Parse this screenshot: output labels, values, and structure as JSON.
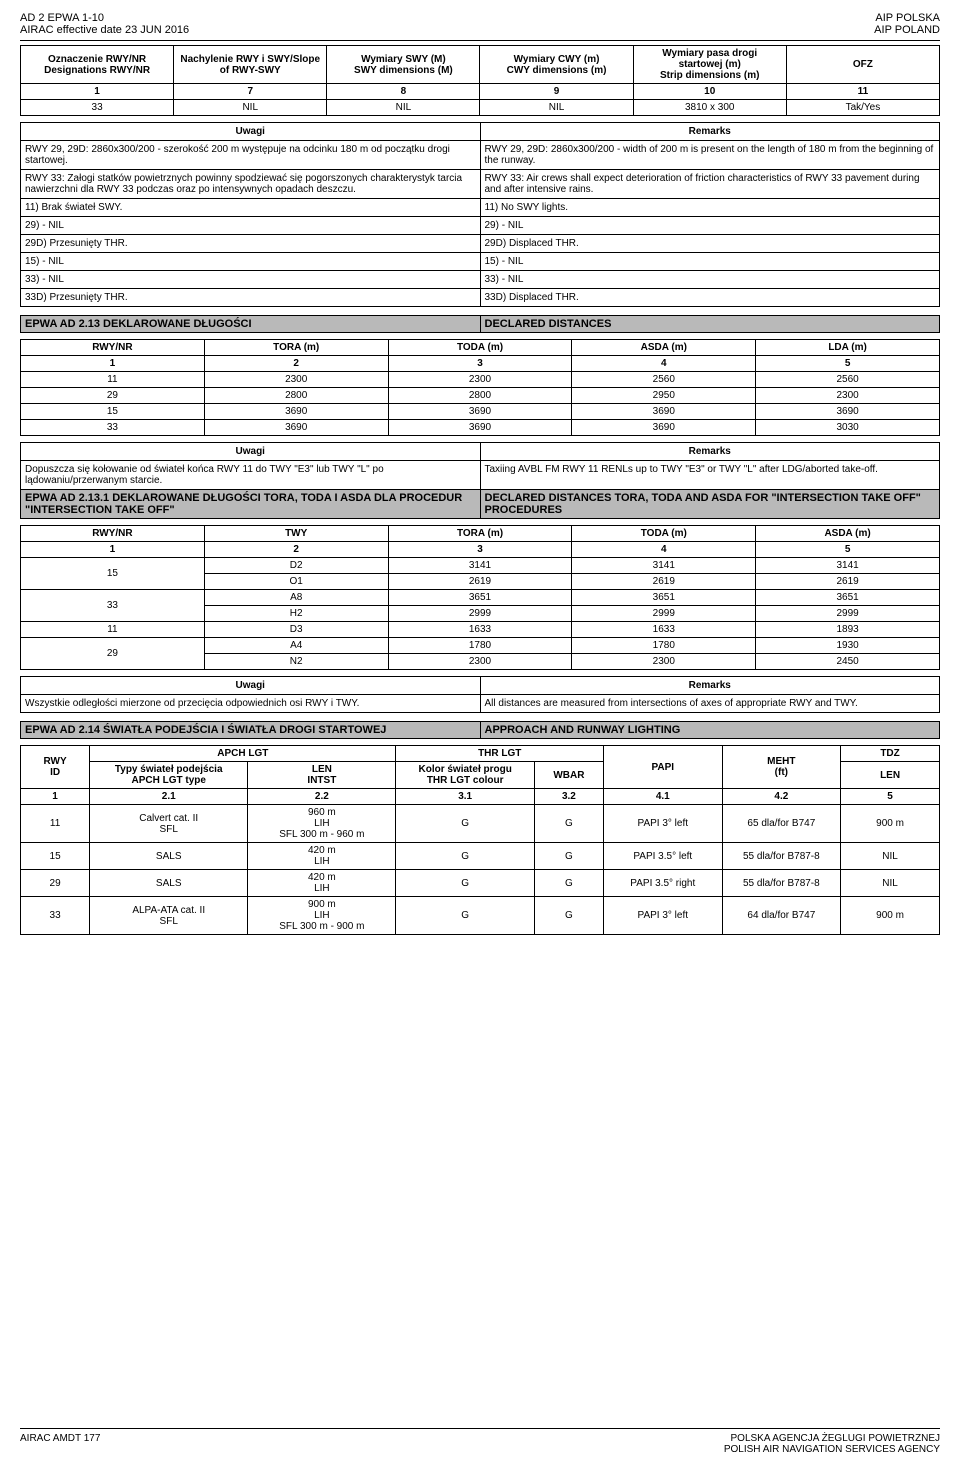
{
  "header": {
    "code": "AD 2 EPWA 1-10",
    "effective_line": "AIRAC effective date  23 JUN 2016",
    "right1": "AIP POLSKA",
    "right2": "AIP POLAND"
  },
  "table1": {
    "headers": [
      "Oznaczenie RWY/NR\nDesignations RWY/NR",
      "Nachylenie RWY i SWY/Slope\nof RWY-SWY",
      "Wymiary SWY (M)\nSWY dimensions (M)",
      "Wymiary CWY (m)\nCWY dimensions (m)",
      "Wymiary pasa drogi\nstartowej (m)\nStrip dimensions (m)",
      "OFZ"
    ],
    "nums": [
      "1",
      "7",
      "8",
      "9",
      "10",
      "11"
    ],
    "row": [
      "33",
      "NIL",
      "NIL",
      "NIL",
      "3810 x 300",
      "Tak/Yes"
    ]
  },
  "remarks1": {
    "uwagi": "Uwagi",
    "remarks": "Remarks",
    "rows": [
      [
        "RWY 29, 29D: 2860x300/200 - szerokość 200 m występuje na odcinku 180 m od początku drogi startowej.",
        "RWY 29, 29D: 2860x300/200 - width of 200 m is present on the length of 180 m from the beginning of the runway."
      ],
      [
        "RWY 33: Załogi statków powietrznych powinny spodziewać się pogorszonych charakterystyk tarcia nawierzchni dla RWY 33 podczas oraz po intensywnych opadach deszczu.",
        "RWY 33: Air crews shall expect deterioration of friction characteristics of RWY 33 pavement during and after intensive rains."
      ],
      [
        "11) Brak świateł SWY.",
        "11) No SWY lights."
      ],
      [
        "29) - NIL",
        "29) - NIL"
      ],
      [
        "29D) Przesunięty THR.",
        "29D) Displaced THR."
      ],
      [
        "15) - NIL",
        "15) - NIL"
      ],
      [
        "33) - NIL",
        "33) - NIL"
      ],
      [
        "33D) Przesunięty THR.",
        "33D) Displaced THR."
      ]
    ]
  },
  "section13": {
    "left": "EPWA AD 2.13 DEKLAROWANE DŁUGOŚCI",
    "right": "DECLARED DISTANCES"
  },
  "table13": {
    "headers": [
      "RWY/NR",
      "TORA (m)",
      "TODA (m)",
      "ASDA (m)",
      "LDA (m)"
    ],
    "nums": [
      "1",
      "2",
      "3",
      "4",
      "5"
    ],
    "rows": [
      [
        "11",
        "2300",
        "2300",
        "2560",
        "2560"
      ],
      [
        "29",
        "2800",
        "2800",
        "2950",
        "2300"
      ],
      [
        "15",
        "3690",
        "3690",
        "3690",
        "3690"
      ],
      [
        "33",
        "3690",
        "3690",
        "3690",
        "3030"
      ]
    ]
  },
  "remarks13": {
    "uwagi": "Uwagi",
    "remarks": "Remarks",
    "rows": [
      [
        "Dopuszcza się kołowanie od świateł końca RWY 11 do TWY \"E3\" lub TWY \"L\" po lądowaniu/przerwanym starcie.",
        "Taxiing AVBL FM RWY 11 RENLs up to TWY \"E3\" or TWY \"L\" after LDG/aborted take-off."
      ]
    ]
  },
  "section131": {
    "left": "EPWA AD 2.13.1 DEKLAROWANE DŁUGOŚCI TORA, TODA I ASDA DLA PROCEDUR \"INTERSECTION TAKE OFF\"",
    "right": "DECLARED DISTANCES TORA, TODA AND ASDA FOR \"INTERSECTION TAKE OFF\" PROCEDURES"
  },
  "table131": {
    "headers": [
      "RWY/NR",
      "TWY",
      "TORA (m)",
      "TODA (m)",
      "ASDA (m)"
    ],
    "nums": [
      "1",
      "2",
      "3",
      "4",
      "5"
    ],
    "rows": [
      {
        "rwy": "15",
        "sub": [
          [
            "D2",
            "3141",
            "3141",
            "3141"
          ],
          [
            "O1",
            "2619",
            "2619",
            "2619"
          ]
        ]
      },
      {
        "rwy": "33",
        "sub": [
          [
            "A8",
            "3651",
            "3651",
            "3651"
          ],
          [
            "H2",
            "2999",
            "2999",
            "2999"
          ]
        ]
      },
      {
        "rwy": "11",
        "sub": [
          [
            "D3",
            "1633",
            "1633",
            "1893"
          ]
        ]
      },
      {
        "rwy": "29",
        "sub": [
          [
            "A4",
            "1780",
            "1780",
            "1930"
          ],
          [
            "N2",
            "2300",
            "2300",
            "2450"
          ]
        ]
      }
    ]
  },
  "remarks131": {
    "uwagi": "Uwagi",
    "remarks": "Remarks",
    "rows": [
      [
        "Wszystkie odległości mierzone od przecięcia odpowiednich osi RWY i TWY.",
        "All distances are measured from intersections of axes of appropriate RWY and TWY."
      ]
    ]
  },
  "section14": {
    "left": "EPWA AD 2.14 ŚWIATŁA PODEJŚCIA I ŚWIATŁA DROGI STARTOWEJ",
    "right": "APPROACH AND RUNWAY LIGHTING"
  },
  "table14": {
    "h1": [
      "RWY\nID",
      "APCH LGT",
      "THR LGT",
      "PAPI",
      "MEHT\n(ft)",
      "TDZ"
    ],
    "h2": [
      "",
      "Typy świateł podejścia\nAPCH LGT type",
      "LEN\nINTST",
      "Kolor świateł progu\nTHR LGT colour",
      "WBAR",
      "",
      "",
      "LEN"
    ],
    "nums": [
      "1",
      "2.1",
      "2.2",
      "3.1",
      "3.2",
      "4.1",
      "4.2",
      "5"
    ],
    "rows": [
      [
        "11",
        "Calvert cat. II\nSFL",
        "960 m\nLIH\nSFL 300 m - 960 m",
        "G",
        "G",
        "PAPI 3° left",
        "65 dla/for B747",
        "900 m"
      ],
      [
        "15",
        "SALS",
        "420 m\nLIH",
        "G",
        "G",
        "PAPI 3.5° left",
        "55 dla/for B787-8",
        "NIL"
      ],
      [
        "29",
        "SALS",
        "420 m\nLIH",
        "G",
        "G",
        "PAPI 3.5° right",
        "55 dla/for B787-8",
        "NIL"
      ],
      [
        "33",
        "ALPA-ATA cat. II\nSFL",
        "900 m\nLIH\nSFL 300 m - 900 m",
        "G",
        "G",
        "PAPI 3° left",
        "64 dla/for B747",
        "900 m"
      ]
    ]
  },
  "footer": {
    "left": "AIRAC AMDT   177",
    "right1": "POLSKA AGENCJA ŻEGLUGI POWIETRZNEJ",
    "right2": "POLISH AIR NAVIGATION SERVICES AGENCY"
  }
}
